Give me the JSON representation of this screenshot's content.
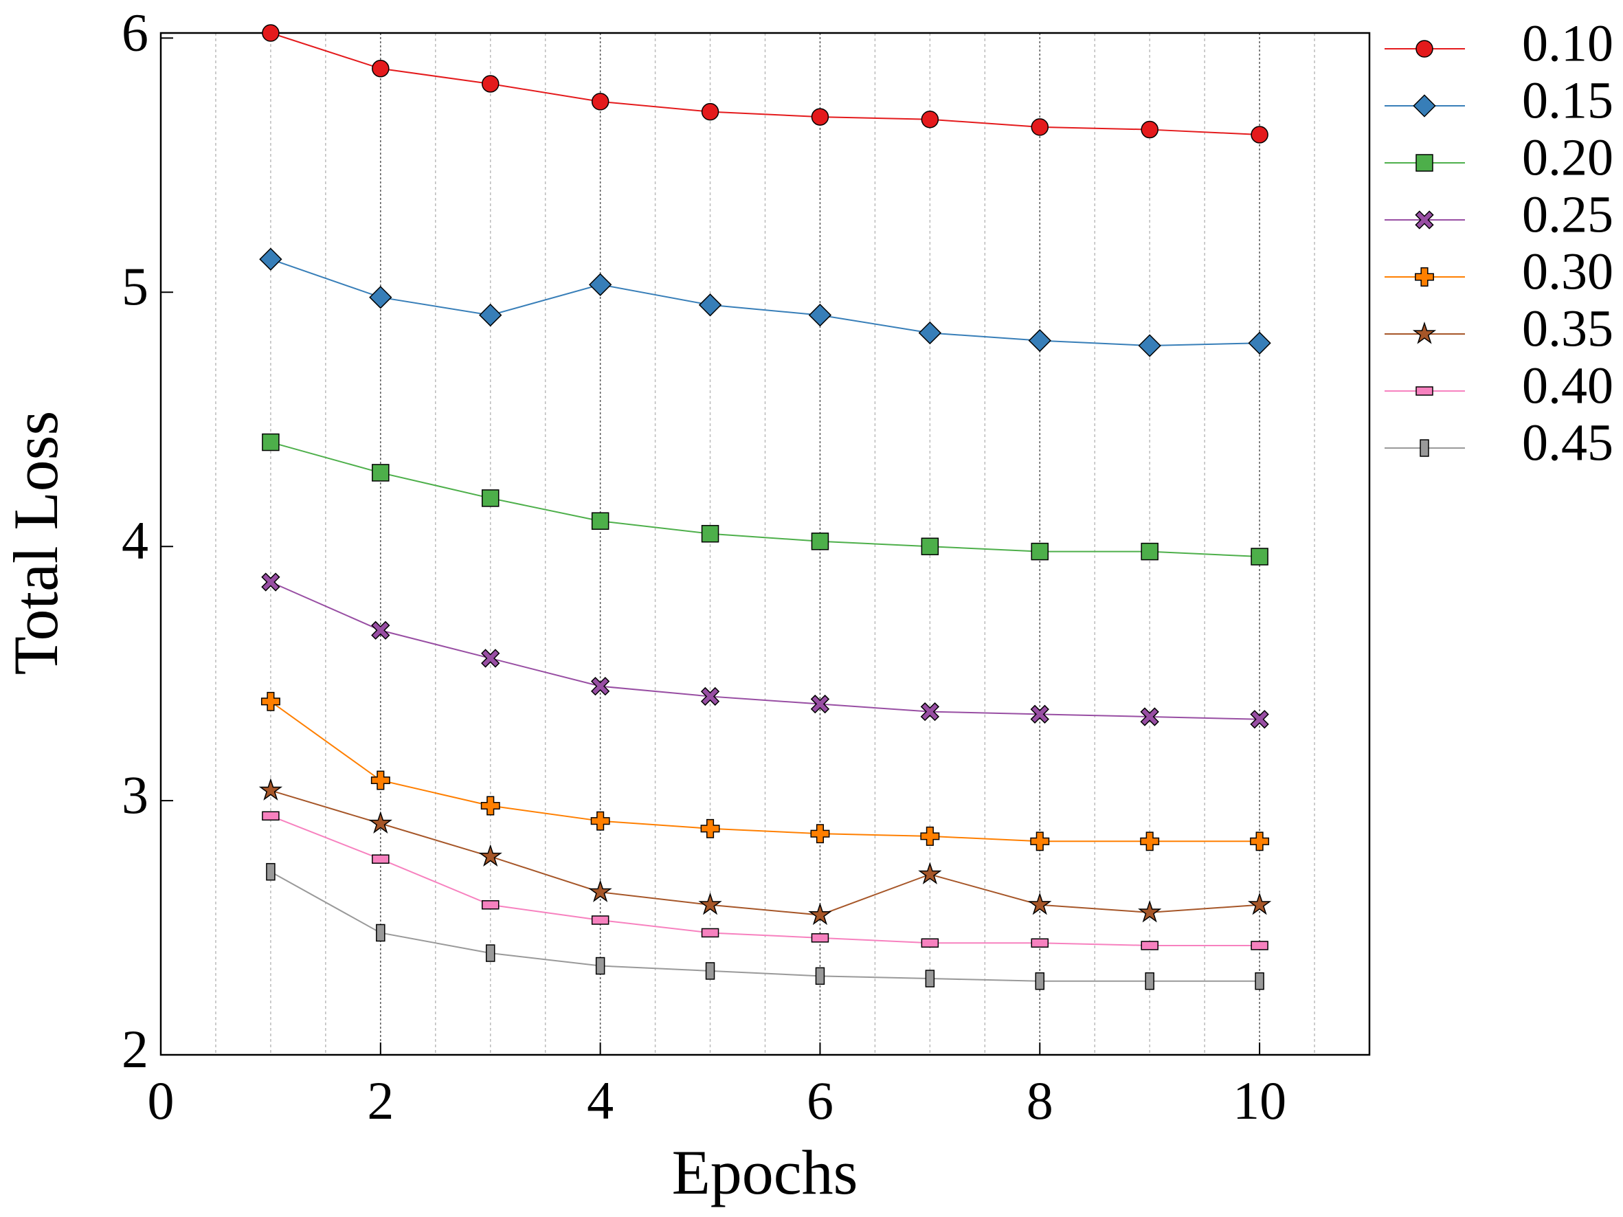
{
  "chart_data": {
    "type": "line",
    "x_label": "Epochs",
    "y_label": "Total Loss",
    "x": [
      1,
      2,
      3,
      4,
      5,
      6,
      7,
      8,
      9,
      10
    ],
    "xlim": [
      0,
      11
    ],
    "xticks": [
      0,
      2,
      4,
      6,
      8,
      10
    ],
    "ylim": [
      2,
      6.02
    ],
    "yticks": [
      2,
      3,
      4,
      5,
      6
    ],
    "grid": true,
    "legend": "outside-right",
    "series": [
      {
        "name": "0.10",
        "color": "#e41a1c",
        "marker": "circle",
        "values": [
          6.02,
          5.88,
          5.82,
          5.75,
          5.71,
          5.69,
          5.68,
          5.65,
          5.64,
          5.62
        ]
      },
      {
        "name": "0.15",
        "color": "#377eb8",
        "marker": "diamond",
        "values": [
          5.13,
          4.98,
          4.91,
          5.03,
          4.95,
          4.91,
          4.84,
          4.81,
          4.79,
          4.8
        ]
      },
      {
        "name": "0.20",
        "color": "#4daf4a",
        "marker": "square",
        "values": [
          4.41,
          4.29,
          4.19,
          4.1,
          4.05,
          4.02,
          4.0,
          3.98,
          3.98,
          3.96
        ]
      },
      {
        "name": "0.25",
        "color": "#984ea3",
        "marker": "x",
        "values": [
          3.86,
          3.67,
          3.56,
          3.45,
          3.41,
          3.38,
          3.35,
          3.34,
          3.33,
          3.32
        ]
      },
      {
        "name": "0.30",
        "color": "#ff7f00",
        "marker": "plus",
        "values": [
          3.39,
          3.08,
          2.98,
          2.92,
          2.89,
          2.87,
          2.86,
          2.84,
          2.84,
          2.84
        ]
      },
      {
        "name": "0.35",
        "color": "#a65628",
        "marker": "star",
        "values": [
          3.04,
          2.91,
          2.78,
          2.64,
          2.59,
          2.55,
          2.71,
          2.59,
          2.56,
          2.59
        ]
      },
      {
        "name": "0.40",
        "color": "#f781bf",
        "marker": "hrect",
        "values": [
          2.94,
          2.77,
          2.59,
          2.53,
          2.48,
          2.46,
          2.44,
          2.44,
          2.43,
          2.43
        ]
      },
      {
        "name": "0.45",
        "color": "#999999",
        "marker": "vrect",
        "values": [
          2.72,
          2.48,
          2.4,
          2.35,
          2.33,
          2.31,
          2.3,
          2.29,
          2.29,
          2.29
        ]
      }
    ]
  }
}
